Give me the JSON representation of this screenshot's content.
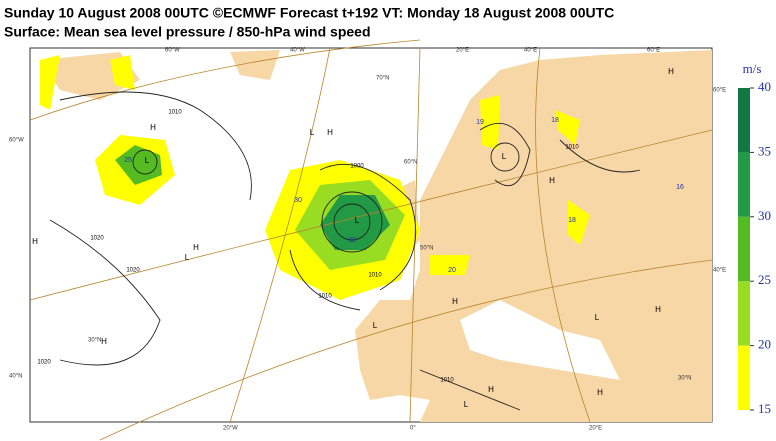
{
  "header": {
    "line1": "Sunday 10 August 2008 00UTC ©ECMWF Forecast t+192 VT: Monday 18 August 2008 00UTC",
    "line2": "Surface: Mean sea level pressure / 850-hPa wind speed"
  },
  "legend": {
    "unit": "m/s",
    "ticks": [
      15,
      20,
      25,
      30,
      35,
      40
    ],
    "colors": [
      "#ffff00",
      "#99dd22",
      "#55bb22",
      "#229944",
      "#117744"
    ]
  },
  "grid_labels": [
    "60°W",
    "40°W",
    "20°E",
    "40°E",
    "60°E",
    "70°N",
    "60°N",
    "50°N",
    "60°W",
    "40°N",
    "60°E",
    "40°E",
    "30°N",
    "30°N",
    "20°W",
    "0°",
    "20°E"
  ],
  "centres": [
    "H",
    "L",
    "L",
    "H",
    "H",
    "L",
    "H",
    "H",
    "L",
    "L",
    "L",
    "H",
    "H",
    "H",
    "L",
    "H",
    "L",
    "H",
    "H"
  ],
  "wind_labels": [
    "25",
    "30",
    "30",
    "20",
    "19",
    "18",
    "16",
    "18"
  ],
  "pressure_labels": [
    "1010",
    "1020",
    "1020",
    "1010",
    "1000",
    "1010",
    "1020",
    "1010",
    "1010"
  ]
}
